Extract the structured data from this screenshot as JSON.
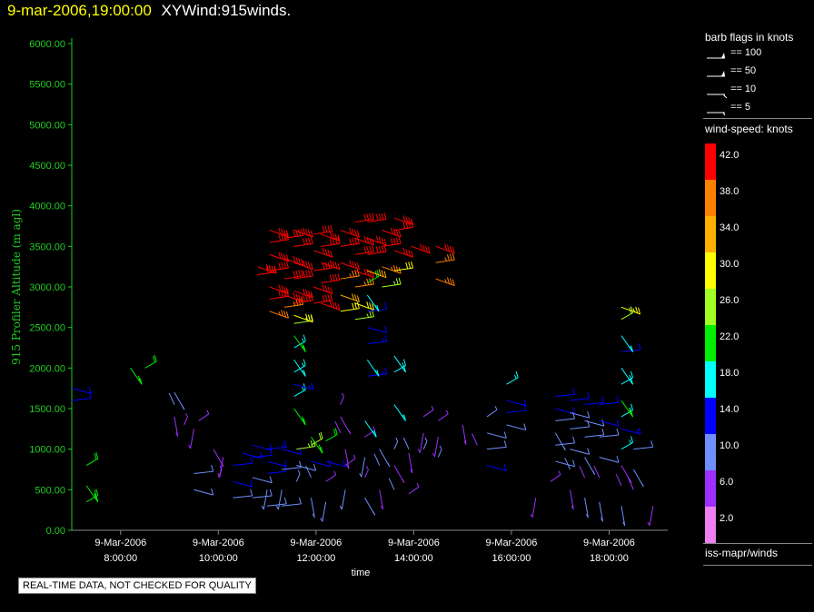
{
  "header": {
    "date_time": "9-mar-2006,19:00:00",
    "product": "XYWind:915winds."
  },
  "legend": {
    "barb_title": "barb flags in knots",
    "barbs": [
      {
        "label": "== 100",
        "icon": "barb-pennant-100"
      },
      {
        "label": "== 50",
        "icon": "barb-pennant-50"
      },
      {
        "label": "== 10",
        "icon": "barb-full-10"
      },
      {
        "label": "== 5",
        "icon": "barb-half-5"
      }
    ],
    "speed_title": "wind-speed: knots",
    "color_scale": [
      {
        "label": "42.0",
        "color": "#ff0000"
      },
      {
        "label": "38.0",
        "color": "#ff7f00"
      },
      {
        "label": "34.0",
        "color": "#ffb000"
      },
      {
        "label": "30.0",
        "color": "#ffff00"
      },
      {
        "label": "26.0",
        "color": "#a0ff20"
      },
      {
        "label": "22.0",
        "color": "#00ee00"
      },
      {
        "label": "18.0",
        "color": "#00ffff"
      },
      {
        "label": "14.0",
        "color": "#0000ff"
      },
      {
        "label": "10.0",
        "color": "#6f8fff"
      },
      {
        "label": "6.0",
        "color": "#9f2fff"
      },
      {
        "label": "2.0",
        "color": "#ef7fef"
      }
    ],
    "source": "iss-mapr/winds"
  },
  "footer": {
    "quality_note": "REAL-TIME DATA, NOT CHECKED FOR QUALITY"
  },
  "chart_data": {
    "type": "scatter",
    "subtype": "wind-barb time-height profile",
    "ylabel": "915 Profiler Altitude (m agl)",
    "xlabel": "time",
    "ylim": [
      0,
      6000
    ],
    "yticks": [
      "0.00",
      "500.00",
      "1000.00",
      "1500.00",
      "2000.00",
      "2500.00",
      "3000.00",
      "3500.00",
      "4000.00",
      "4500.00",
      "5000.00",
      "5500.00",
      "6000.00"
    ],
    "xlim_hours": [
      7.0,
      19.2
    ],
    "xticks": [
      {
        "hour": 8,
        "date": "9-Mar-2006",
        "time": "8:00:00"
      },
      {
        "hour": 10,
        "date": "9-Mar-2006",
        "time": "10:00:00"
      },
      {
        "hour": 12,
        "date": "9-Mar-2006",
        "time": "12:00:00"
      },
      {
        "hour": 14,
        "date": "9-Mar-2006",
        "time": "14:00:00"
      },
      {
        "hour": 16,
        "date": "9-Mar-2006",
        "time": "16:00:00"
      },
      {
        "hour": 18,
        "date": "9-Mar-2006",
        "time": "18:00:00"
      }
    ],
    "grid": false,
    "axis_color": "#22cc22",
    "barbs": [
      {
        "t": 7.0,
        "z": 1600,
        "spd": 12
      },
      {
        "t": 7.0,
        "z": 1750,
        "spd": 13
      },
      {
        "t": 7.3,
        "z": 350,
        "spd": 22
      },
      {
        "t": 7.3,
        "z": 550,
        "spd": 22
      },
      {
        "t": 7.3,
        "z": 800,
        "spd": 22
      },
      {
        "t": 8.2,
        "z": 2000,
        "spd": 20
      },
      {
        "t": 8.5,
        "z": 2000,
        "spd": 20
      },
      {
        "t": 9.1,
        "z": 1400,
        "spd": 7
      },
      {
        "t": 9.1,
        "z": 1550,
        "spd": 8
      },
      {
        "t": 9.1,
        "z": 1700,
        "spd": 8
      },
      {
        "t": 9.3,
        "z": 1300,
        "spd": 7
      },
      {
        "t": 9.5,
        "z": 1250,
        "spd": 6
      },
      {
        "t": 9.6,
        "z": 1350,
        "spd": 6
      },
      {
        "t": 9.5,
        "z": 500,
        "spd": 10
      },
      {
        "t": 9.5,
        "z": 700,
        "spd": 10
      },
      {
        "t": 9.9,
        "z": 1000,
        "spd": 7
      },
      {
        "t": 10.0,
        "z": 650,
        "spd": 6
      },
      {
        "t": 10.1,
        "z": 900,
        "spd": 7
      },
      {
        "t": 10.3,
        "z": 400,
        "spd": 10
      },
      {
        "t": 10.3,
        "z": 600,
        "spd": 12
      },
      {
        "t": 10.3,
        "z": 800,
        "spd": 13
      },
      {
        "t": 10.5,
        "z": 950,
        "spd": 12
      },
      {
        "t": 10.7,
        "z": 400,
        "spd": 10
      },
      {
        "t": 10.7,
        "z": 650,
        "spd": 11
      },
      {
        "t": 10.7,
        "z": 900,
        "spd": 12
      },
      {
        "t": 10.7,
        "z": 1050,
        "spd": 14
      },
      {
        "t": 10.8,
        "z": 3150,
        "spd": 42
      },
      {
        "t": 10.8,
        "z": 3250,
        "spd": 40
      },
      {
        "t": 11.0,
        "z": 300,
        "spd": 11
      },
      {
        "t": 11.0,
        "z": 500,
        "spd": 9
      },
      {
        "t": 11.0,
        "z": 700,
        "spd": 12
      },
      {
        "t": 11.0,
        "z": 850,
        "spd": 14
      },
      {
        "t": 11.0,
        "z": 1000,
        "spd": 15
      },
      {
        "t": 11.05,
        "z": 2700,
        "spd": 36
      },
      {
        "t": 11.05,
        "z": 2850,
        "spd": 40
      },
      {
        "t": 11.05,
        "z": 3000,
        "spd": 42
      },
      {
        "t": 11.05,
        "z": 3200,
        "spd": 42
      },
      {
        "t": 11.05,
        "z": 3400,
        "spd": 42
      },
      {
        "t": 11.05,
        "z": 3550,
        "spd": 42
      },
      {
        "t": 11.05,
        "z": 3700,
        "spd": 42
      },
      {
        "t": 11.3,
        "z": 300,
        "spd": 10
      },
      {
        "t": 11.3,
        "z": 500,
        "spd": 9
      },
      {
        "t": 11.3,
        "z": 750,
        "spd": 11
      },
      {
        "t": 11.3,
        "z": 1000,
        "spd": 14
      },
      {
        "t": 11.35,
        "z": 2750,
        "spd": 38
      },
      {
        "t": 11.35,
        "z": 2900,
        "spd": 42
      },
      {
        "t": 11.35,
        "z": 3100,
        "spd": 42
      },
      {
        "t": 11.35,
        "z": 3350,
        "spd": 42
      },
      {
        "t": 11.35,
        "z": 3600,
        "spd": 42
      },
      {
        "t": 11.55,
        "z": 1500,
        "spd": 22
      },
      {
        "t": 11.55,
        "z": 1650,
        "spd": 16
      },
      {
        "t": 11.55,
        "z": 1800,
        "spd": 15
      },
      {
        "t": 11.55,
        "z": 1950,
        "spd": 16
      },
      {
        "t": 11.55,
        "z": 2100,
        "spd": 18
      },
      {
        "t": 11.55,
        "z": 2250,
        "spd": 18
      },
      {
        "t": 11.55,
        "z": 2400,
        "spd": 22
      },
      {
        "t": 11.55,
        "z": 2550,
        "spd": 26
      },
      {
        "t": 11.55,
        "z": 2650,
        "spd": 30
      },
      {
        "t": 11.55,
        "z": 2800,
        "spd": 40
      },
      {
        "t": 11.55,
        "z": 2950,
        "spd": 42
      },
      {
        "t": 11.55,
        "z": 3100,
        "spd": 42
      },
      {
        "t": 11.55,
        "z": 3300,
        "spd": 42
      },
      {
        "t": 11.55,
        "z": 3500,
        "spd": 42
      },
      {
        "t": 11.55,
        "z": 3700,
        "spd": 42
      },
      {
        "t": 11.6,
        "z": 600,
        "spd": 8
      },
      {
        "t": 11.6,
        "z": 800,
        "spd": 10
      },
      {
        "t": 11.6,
        "z": 1000,
        "spd": 26
      },
      {
        "t": 11.9,
        "z": 400,
        "spd": 8
      },
      {
        "t": 11.9,
        "z": 650,
        "spd": 9
      },
      {
        "t": 11.9,
        "z": 850,
        "spd": 12
      },
      {
        "t": 11.9,
        "z": 1050,
        "spd": 24
      },
      {
        "t": 11.9,
        "z": 1150,
        "spd": 22
      },
      {
        "t": 11.95,
        "z": 2800,
        "spd": 42
      },
      {
        "t": 11.95,
        "z": 3000,
        "spd": 42
      },
      {
        "t": 11.95,
        "z": 3200,
        "spd": 42
      },
      {
        "t": 11.95,
        "z": 3450,
        "spd": 42
      },
      {
        "t": 11.95,
        "z": 3650,
        "spd": 42
      },
      {
        "t": 12.2,
        "z": 350,
        "spd": 8
      },
      {
        "t": 12.2,
        "z": 600,
        "spd": 7
      },
      {
        "t": 12.2,
        "z": 850,
        "spd": 12
      },
      {
        "t": 12.2,
        "z": 1100,
        "spd": 22
      },
      {
        "t": 12.1,
        "z": 2800,
        "spd": 42
      },
      {
        "t": 12.1,
        "z": 3050,
        "spd": 42
      },
      {
        "t": 12.1,
        "z": 3300,
        "spd": 42
      },
      {
        "t": 12.1,
        "z": 3500,
        "spd": 42
      },
      {
        "t": 12.1,
        "z": 3650,
        "spd": 42
      },
      {
        "t": 12.5,
        "z": 2700,
        "spd": 30
      },
      {
        "t": 12.5,
        "z": 2900,
        "spd": 34
      },
      {
        "t": 12.5,
        "z": 3100,
        "spd": 38
      },
      {
        "t": 12.5,
        "z": 3300,
        "spd": 42
      },
      {
        "t": 12.5,
        "z": 3500,
        "spd": 42
      },
      {
        "t": 12.5,
        "z": 3700,
        "spd": 42
      },
      {
        "t": 12.5,
        "z": 1200,
        "spd": 7
      },
      {
        "t": 12.5,
        "z": 1400,
        "spd": 6
      },
      {
        "t": 12.5,
        "z": 1550,
        "spd": 6
      },
      {
        "t": 12.6,
        "z": 500,
        "spd": 8
      },
      {
        "t": 12.6,
        "z": 800,
        "spd": 7
      },
      {
        "t": 12.6,
        "z": 1000,
        "spd": 7
      },
      {
        "t": 12.8,
        "z": 2600,
        "spd": 26
      },
      {
        "t": 12.8,
        "z": 2800,
        "spd": 30
      },
      {
        "t": 12.8,
        "z": 3000,
        "spd": 36
      },
      {
        "t": 12.8,
        "z": 3200,
        "spd": 42
      },
      {
        "t": 12.8,
        "z": 3400,
        "spd": 42
      },
      {
        "t": 12.8,
        "z": 3600,
        "spd": 42
      },
      {
        "t": 12.8,
        "z": 3800,
        "spd": 42
      },
      {
        "t": 13.0,
        "z": 400,
        "spd": 8
      },
      {
        "t": 13.0,
        "z": 650,
        "spd": 7
      },
      {
        "t": 13.0,
        "z": 900,
        "spd": 8
      },
      {
        "t": 13.0,
        "z": 1150,
        "spd": 7
      },
      {
        "t": 13.0,
        "z": 1350,
        "spd": 16
      },
      {
        "t": 13.05,
        "z": 1900,
        "spd": 15
      },
      {
        "t": 13.05,
        "z": 2100,
        "spd": 16
      },
      {
        "t": 13.05,
        "z": 2300,
        "spd": 15
      },
      {
        "t": 13.05,
        "z": 2500,
        "spd": 14
      },
      {
        "t": 13.05,
        "z": 2700,
        "spd": 14
      },
      {
        "t": 13.05,
        "z": 2900,
        "spd": 16
      },
      {
        "t": 13.05,
        "z": 3050,
        "spd": 22
      },
      {
        "t": 13.05,
        "z": 3200,
        "spd": 34
      },
      {
        "t": 13.05,
        "z": 3400,
        "spd": 42
      },
      {
        "t": 13.05,
        "z": 3600,
        "spd": 42
      },
      {
        "t": 13.05,
        "z": 3800,
        "spd": 42
      },
      {
        "t": 13.3,
        "z": 500,
        "spd": 7
      },
      {
        "t": 13.3,
        "z": 800,
        "spd": 9
      },
      {
        "t": 13.3,
        "z": 1000,
        "spd": 8
      },
      {
        "t": 13.35,
        "z": 3000,
        "spd": 26
      },
      {
        "t": 13.35,
        "z": 3250,
        "spd": 36
      },
      {
        "t": 13.35,
        "z": 3500,
        "spd": 42
      },
      {
        "t": 13.35,
        "z": 3700,
        "spd": 42
      },
      {
        "t": 13.6,
        "z": 500,
        "spd": 8
      },
      {
        "t": 13.6,
        "z": 800,
        "spd": 7
      },
      {
        "t": 13.6,
        "z": 1000,
        "spd": 9
      },
      {
        "t": 13.6,
        "z": 1550,
        "spd": 17
      },
      {
        "t": 13.6,
        "z": 1950,
        "spd": 18
      },
      {
        "t": 13.6,
        "z": 2150,
        "spd": 16
      },
      {
        "t": 13.6,
        "z": 3200,
        "spd": 30
      },
      {
        "t": 13.6,
        "z": 3450,
        "spd": 40
      },
      {
        "t": 13.6,
        "z": 3700,
        "spd": 42
      },
      {
        "t": 13.6,
        "z": 3850,
        "spd": 42
      },
      {
        "t": 13.9,
        "z": 450,
        "spd": 7
      },
      {
        "t": 13.9,
        "z": 950,
        "spd": 7
      },
      {
        "t": 13.9,
        "z": 1000,
        "spd": 8
      },
      {
        "t": 13.95,
        "z": 3500,
        "spd": 42
      },
      {
        "t": 14.2,
        "z": 1000,
        "spd": 8
      },
      {
        "t": 14.2,
        "z": 1200,
        "spd": 7
      },
      {
        "t": 14.2,
        "z": 1400,
        "spd": 7
      },
      {
        "t": 14.45,
        "z": 3100,
        "spd": 36
      },
      {
        "t": 14.45,
        "z": 3300,
        "spd": 38
      },
      {
        "t": 14.45,
        "z": 3500,
        "spd": 42
      },
      {
        "t": 14.5,
        "z": 900,
        "spd": 8
      },
      {
        "t": 14.5,
        "z": 1150,
        "spd": 7
      },
      {
        "t": 14.5,
        "z": 1350,
        "spd": 7
      },
      {
        "t": 15.0,
        "z": 1300,
        "spd": 7
      },
      {
        "t": 15.3,
        "z": 1050,
        "spd": 7
      },
      {
        "t": 15.5,
        "z": 800,
        "spd": 12
      },
      {
        "t": 15.5,
        "z": 1000,
        "spd": 10
      },
      {
        "t": 15.5,
        "z": 1200,
        "spd": 10
      },
      {
        "t": 15.5,
        "z": 1400,
        "spd": 9
      },
      {
        "t": 15.9,
        "z": 1300,
        "spd": 10
      },
      {
        "t": 15.9,
        "z": 1450,
        "spd": 12
      },
      {
        "t": 15.9,
        "z": 1600,
        "spd": 14
      },
      {
        "t": 15.9,
        "z": 1800,
        "spd": 16
      },
      {
        "t": 16.5,
        "z": 400,
        "spd": 7
      },
      {
        "t": 16.8,
        "z": 600,
        "spd": 7
      },
      {
        "t": 16.9,
        "z": 850,
        "spd": 10
      },
      {
        "t": 16.9,
        "z": 1050,
        "spd": 10
      },
      {
        "t": 16.9,
        "z": 1200,
        "spd": 8
      },
      {
        "t": 16.9,
        "z": 1350,
        "spd": 10
      },
      {
        "t": 16.9,
        "z": 1500,
        "spd": 12
      },
      {
        "t": 16.9,
        "z": 1650,
        "spd": 14
      },
      {
        "t": 17.2,
        "z": 500,
        "spd": 7
      },
      {
        "t": 17.2,
        "z": 750,
        "spd": 8
      },
      {
        "t": 17.2,
        "z": 1000,
        "spd": 10
      },
      {
        "t": 17.2,
        "z": 1250,
        "spd": 10
      },
      {
        "t": 17.2,
        "z": 1450,
        "spd": 11
      },
      {
        "t": 17.2,
        "z": 1600,
        "spd": 14
      },
      {
        "t": 17.5,
        "z": 400,
        "spd": 8
      },
      {
        "t": 17.5,
        "z": 650,
        "spd": 7
      },
      {
        "t": 17.5,
        "z": 900,
        "spd": 8
      },
      {
        "t": 17.5,
        "z": 1150,
        "spd": 10
      },
      {
        "t": 17.5,
        "z": 1350,
        "spd": 10
      },
      {
        "t": 17.5,
        "z": 1550,
        "spd": 14
      },
      {
        "t": 17.8,
        "z": 350,
        "spd": 8
      },
      {
        "t": 17.8,
        "z": 650,
        "spd": 7
      },
      {
        "t": 17.8,
        "z": 900,
        "spd": 10
      },
      {
        "t": 17.8,
        "z": 1150,
        "spd": 10
      },
      {
        "t": 17.8,
        "z": 1350,
        "spd": 12
      },
      {
        "t": 17.8,
        "z": 1550,
        "spd": 14
      },
      {
        "t": 18.25,
        "z": 300,
        "spd": 8
      },
      {
        "t": 18.25,
        "z": 550,
        "spd": 7
      },
      {
        "t": 18.25,
        "z": 800,
        "spd": 7
      },
      {
        "t": 18.25,
        "z": 1000,
        "spd": 18
      },
      {
        "t": 18.25,
        "z": 1250,
        "spd": 15
      },
      {
        "t": 18.25,
        "z": 1400,
        "spd": 18
      },
      {
        "t": 18.25,
        "z": 1600,
        "spd": 22
      },
      {
        "t": 18.25,
        "z": 1800,
        "spd": 18
      },
      {
        "t": 18.25,
        "z": 2000,
        "spd": 16
      },
      {
        "t": 18.25,
        "z": 2200,
        "spd": 14
      },
      {
        "t": 18.25,
        "z": 2400,
        "spd": 16
      },
      {
        "t": 18.25,
        "z": 2600,
        "spd": 24
      },
      {
        "t": 18.25,
        "z": 2750,
        "spd": 28
      },
      {
        "t": 18.5,
        "z": 500,
        "spd": 7
      },
      {
        "t": 18.5,
        "z": 750,
        "spd": 8
      },
      {
        "t": 18.5,
        "z": 1000,
        "spd": 10
      },
      {
        "t": 18.9,
        "z": 300,
        "spd": 7
      }
    ]
  }
}
